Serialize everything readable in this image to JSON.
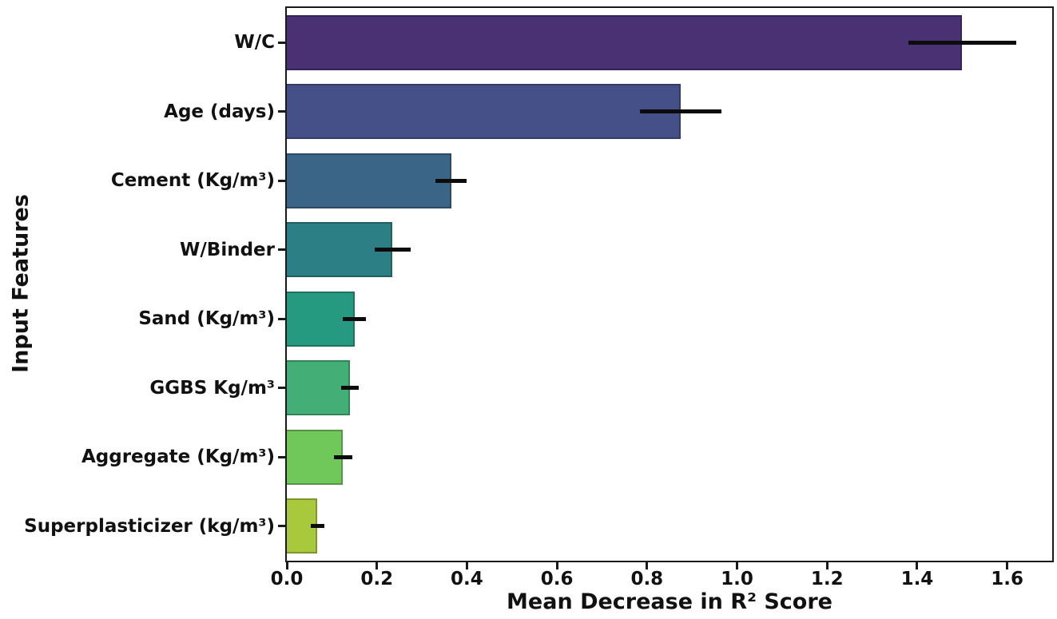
{
  "figure": {
    "background": "#ffffff",
    "spine_color": "#1a1a1a",
    "text_color": "#111111",
    "errorbar_color": "#0c0c0c"
  },
  "chart_data": {
    "type": "bar",
    "orientation": "horizontal",
    "title": "",
    "xlabel": "Mean Decrease in R² Score",
    "ylabel": "Input Features",
    "xlim": [
      0,
      1.7
    ],
    "xticks": [
      "0.0",
      "0.2",
      "0.4",
      "0.6",
      "0.8",
      "1.0",
      "1.2",
      "1.4",
      "1.6"
    ],
    "grid": false,
    "legend": null,
    "categories": [
      "W/C",
      "Age (days)",
      "Cement (Kg/m³)",
      "W/Binder",
      "Sand (Kg/m³)",
      "GGBS Kg/m³",
      "Aggregate (Kg/m³)",
      "Superplasticizer (kg/m³)"
    ],
    "values": [
      1.5,
      0.875,
      0.365,
      0.235,
      0.15,
      0.14,
      0.125,
      0.068
    ],
    "errors": [
      0.12,
      0.09,
      0.035,
      0.04,
      0.025,
      0.02,
      0.02,
      0.015
    ],
    "colors": [
      "#493174",
      "#465088",
      "#3a6587",
      "#2c7f84",
      "#269a80",
      "#43ae76",
      "#70c85a",
      "#a9c93c"
    ]
  }
}
